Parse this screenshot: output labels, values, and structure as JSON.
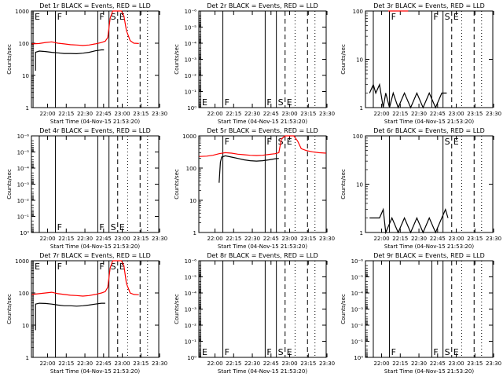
{
  "chart_data": [
    {
      "type": "line",
      "title": "Det 1r BLACK = Events, RED = LLD",
      "xlabel": "Start Time (04-Nov-15 21:53:20)",
      "ylabel": "Counts/sec",
      "xticks": [
        "22:00",
        "22:15",
        "22:30",
        "22:45",
        "23:00",
        "23:15",
        "23:30"
      ],
      "x_range_minutes": [
        -6.3,
        96.0
      ],
      "y_scale": "log",
      "ylim": [
        1,
        1000
      ],
      "yticks": [
        {
          "label": "1",
          "value": 1
        },
        {
          "label": "10",
          "value": 10
        },
        {
          "label": "100",
          "value": 100
        },
        {
          "label": "1000",
          "value": 1000
        }
      ],
      "markers": {
        "solid": [
          {
            "t": -5.0,
            "label": "E"
          },
          {
            "t": 13.0,
            "label": "F"
          },
          {
            "t": 47.0,
            "label": "F"
          },
          {
            "t": 56.0,
            "label": "S"
          }
        ],
        "dashed": [
          {
            "t": 63.0,
            "label": "E"
          },
          {
            "t": 81.0,
            "label": ""
          }
        ],
        "dotted": [
          71.0,
          87.0
        ]
      },
      "series": [
        {
          "name": "Events",
          "color": "#000000",
          "x": [
            -3,
            -3,
            0,
            5,
            10,
            15,
            20,
            25,
            30,
            35,
            40,
            45,
            50,
            52
          ],
          "y": [
            14,
            52,
            57,
            55,
            52,
            50,
            48,
            48,
            47,
            49,
            52,
            58,
            62,
            62
          ]
        },
        {
          "name": "LLD",
          "color": "#ff0000",
          "x": [
            -6,
            0,
            5,
            10,
            15,
            20,
            25,
            30,
            35,
            40,
            45,
            50,
            53,
            55,
            57,
            59,
            66,
            68,
            70,
            73,
            76,
            80
          ],
          "y": [
            95,
            98,
            105,
            110,
            100,
            95,
            90,
            88,
            85,
            88,
            95,
            105,
            115,
            150,
            600,
            1000,
            1000,
            700,
            250,
            120,
            100,
            98
          ]
        }
      ]
    },
    {
      "type": "line",
      "title": "Det 2r BLACK = Events, RED = LLD",
      "xlabel": "Start Time (04-Nov-15 21:53:20)",
      "ylabel": "Counts/sec",
      "xticks": [
        "22:00",
        "22:15",
        "22:30",
        "22:45",
        "23:00",
        "23:15",
        "23:30"
      ],
      "x_range_minutes": [
        -6.3,
        96.0
      ],
      "y_scale": "log",
      "ylim": [
        1,
        1e-06
      ],
      "yticks": [
        {
          "label": "10⁰",
          "value": 1
        },
        {
          "label": "10⁻¹",
          "value": 0.1
        },
        {
          "label": "10⁻²",
          "value": 0.01
        },
        {
          "label": "10⁻³",
          "value": 0.001
        },
        {
          "label": "10⁻⁴",
          "value": 0.0001
        },
        {
          "label": "10⁻⁵",
          "value": 1e-05
        },
        {
          "label": "10⁻⁶",
          "value": 1e-06
        }
      ],
      "markers": {
        "solid": [
          {
            "t": -5.0,
            "label": "E"
          },
          {
            "t": 13.0,
            "label": "F"
          },
          {
            "t": 47.0,
            "label": "F"
          },
          {
            "t": 56.0,
            "label": "S"
          }
        ],
        "dashed": [
          {
            "t": 63.0,
            "label": "E"
          },
          {
            "t": 81.0,
            "label": ""
          }
        ],
        "dotted": [
          71.0,
          87.0
        ]
      },
      "series": []
    },
    {
      "type": "line",
      "title": "Det 3r BLACK = Events, RED = LLD",
      "xlabel": "Start Time (04-Nov-15 21:53:20)",
      "ylabel": "Counts/sec",
      "xticks": [
        "22:00",
        "22:15",
        "22:30",
        "22:45",
        "23:00",
        "23:15",
        "23:30"
      ],
      "x_range_minutes": [
        -6.3,
        96.0
      ],
      "y_scale": "log",
      "ylim": [
        1,
        100
      ],
      "yticks": [
        {
          "label": "1",
          "value": 1
        },
        {
          "label": "10",
          "value": 10
        },
        {
          "label": "100",
          "value": 100
        }
      ],
      "markers": {
        "solid": [
          {
            "t": 0.0,
            "label": ""
          },
          {
            "t": 13.0,
            "label": "F"
          },
          {
            "t": 47.0,
            "label": "F"
          },
          {
            "t": 56.0,
            "label": "S"
          }
        ],
        "dashed": [
          {
            "t": 63.0,
            "label": "E"
          },
          {
            "t": 81.0,
            "label": ""
          }
        ],
        "dotted": [
          71.0,
          87.0
        ]
      },
      "series": [
        {
          "name": "Events",
          "color": "#000000",
          "x": [
            -3,
            0,
            2,
            5,
            8,
            10,
            13,
            16,
            20,
            25,
            30,
            35,
            40,
            45,
            50,
            55,
            59
          ],
          "y": [
            2,
            3,
            2,
            3,
            1,
            2,
            1,
            2,
            1,
            2,
            1,
            2,
            1,
            2,
            1,
            2,
            2
          ]
        },
        {
          "name": "LLD",
          "color": "#ff0000",
          "x": [
            12,
            16,
            20,
            25,
            28
          ],
          "y": [
            100,
            100,
            100,
            100,
            100
          ]
        }
      ]
    },
    {
      "type": "line",
      "title": "Det 4r BLACK = Events, RED = LLD",
      "xlabel": "Start Time (04-Nov-15 21:53:20)",
      "ylabel": "Counts/sec",
      "xticks": [
        "22:00",
        "22:15",
        "22:30",
        "22:45",
        "23:00",
        "23:15",
        "23:30"
      ],
      "x_range_minutes": [
        -6.3,
        96.0
      ],
      "y_scale": "log",
      "ylim": [
        1,
        1e-06
      ],
      "yticks": [
        {
          "label": "10⁰",
          "value": 1
        },
        {
          "label": "10⁻¹",
          "value": 0.1
        },
        {
          "label": "10⁻²",
          "value": 0.01
        },
        {
          "label": "10⁻³",
          "value": 0.001
        },
        {
          "label": "10⁻⁴",
          "value": 0.0001
        },
        {
          "label": "10⁻⁵",
          "value": 1e-05
        },
        {
          "label": "10⁻⁶",
          "value": 1e-06
        }
      ],
      "markers": {
        "solid": [
          {
            "t": 0.0,
            "label": ""
          },
          {
            "t": 13.0,
            "label": "F"
          },
          {
            "t": 47.0,
            "label": "F"
          },
          {
            "t": 56.0,
            "label": "S"
          }
        ],
        "dashed": [
          {
            "t": 63.0,
            "label": "E"
          },
          {
            "t": 81.0,
            "label": ""
          }
        ],
        "dotted": [
          71.0,
          87.0
        ]
      },
      "series": []
    },
    {
      "type": "line",
      "title": "Det 5r BLACK = Events, RED = LLD",
      "xlabel": "Start Time (04-Nov-15 21:53:20)",
      "ylabel": "Counts/sec",
      "xticks": [
        "22:00",
        "22:15",
        "22:30",
        "22:45",
        "23:00",
        "23:15",
        "23:30"
      ],
      "x_range_minutes": [
        -6.3,
        96.0
      ],
      "y_scale": "log",
      "ylim": [
        1,
        1000
      ],
      "yticks": [
        {
          "label": "1",
          "value": 1
        },
        {
          "label": "10",
          "value": 10
        },
        {
          "label": "100",
          "value": 100
        },
        {
          "label": "1000",
          "value": 1000
        }
      ],
      "markers": {
        "solid": [
          {
            "t": 13.0,
            "label": "F"
          },
          {
            "t": 47.0,
            "label": "F"
          },
          {
            "t": 56.0,
            "label": "S"
          }
        ],
        "dashed": [
          {
            "t": 63.0,
            "label": "E"
          },
          {
            "t": 81.0,
            "label": ""
          }
        ],
        "dotted": [
          71.0,
          87.0
        ]
      },
      "series": [
        {
          "name": "Events",
          "color": "#000000",
          "x": [
            10,
            11,
            12,
            15,
            20,
            25,
            30,
            35,
            40,
            45,
            50,
            55,
            58
          ],
          "y": [
            35,
            150,
            220,
            240,
            220,
            200,
            180,
            170,
            165,
            170,
            180,
            195,
            200
          ]
        },
        {
          "name": "LLD",
          "color": "#ff0000",
          "x": [
            -6,
            0,
            5,
            10,
            15,
            20,
            25,
            30,
            35,
            40,
            45,
            50,
            55,
            58,
            60,
            63,
            70,
            73,
            76,
            80,
            85,
            90,
            96
          ],
          "y": [
            230,
            235,
            250,
            280,
            300,
            290,
            270,
            260,
            250,
            245,
            250,
            265,
            280,
            300,
            800,
            1000,
            1000,
            700,
            400,
            350,
            320,
            300,
            290
          ]
        }
      ]
    },
    {
      "type": "line",
      "title": "Det 6r BLACK = Events, RED = LLD",
      "xlabel": "Start Time (04-Nov-15 21:53:20)",
      "ylabel": "Counts/sec",
      "xticks": [
        "22:00",
        "22:15",
        "22:30",
        "22:45",
        "23:00",
        "23:15",
        "23:30"
      ],
      "x_range_minutes": [
        -6.3,
        96.0
      ],
      "y_scale": "log",
      "ylim": [
        1,
        100
      ],
      "yticks": [
        {
          "label": "1",
          "value": 1
        },
        {
          "label": "10",
          "value": 10
        },
        {
          "label": "100",
          "value": 100
        }
      ],
      "markers": {
        "solid": [
          {
            "t": 13.0,
            "label": ""
          },
          {
            "t": 56.0,
            "label": "S"
          }
        ],
        "dashed": [
          {
            "t": 63.0,
            "label": "E"
          },
          {
            "t": 81.0,
            "label": ""
          }
        ],
        "dotted": [
          71.0,
          87.0
        ]
      },
      "series": [
        {
          "name": "Events",
          "color": "#000000",
          "x": [
            -3,
            5,
            8,
            10,
            15,
            20,
            25,
            30,
            35,
            40,
            45,
            50,
            55,
            58,
            60
          ],
          "y": [
            2,
            2,
            3,
            1,
            2,
            1,
            2,
            1,
            2,
            1,
            2,
            1,
            2,
            3,
            2
          ]
        }
      ]
    },
    {
      "type": "line",
      "title": "Det 7r BLACK = Events, RED = LLD",
      "xlabel": "Start Time (04-Nov-15 21:53:20)",
      "ylabel": "Counts/sec",
      "xticks": [
        "22:00",
        "22:15",
        "22:30",
        "22:45",
        "23:00",
        "23:15",
        "23:30"
      ],
      "x_range_minutes": [
        -6.3,
        96.0
      ],
      "y_scale": "log",
      "ylim": [
        1,
        1000
      ],
      "yticks": [
        {
          "label": "1",
          "value": 1
        },
        {
          "label": "10",
          "value": 10
        },
        {
          "label": "100",
          "value": 100
        },
        {
          "label": "1000",
          "value": 1000
        }
      ],
      "markers": {
        "solid": [
          {
            "t": -5.0,
            "label": "E"
          },
          {
            "t": 13.0,
            "label": "F"
          },
          {
            "t": 47.0,
            "label": "F"
          },
          {
            "t": 56.0,
            "label": "S"
          }
        ],
        "dashed": [
          {
            "t": 63.0,
            "label": "E"
          },
          {
            "t": 81.0,
            "label": ""
          }
        ],
        "dotted": [
          71.0,
          87.0
        ]
      },
      "series": [
        {
          "name": "Events",
          "color": "#000000",
          "x": [
            -3,
            -3,
            0,
            5,
            10,
            15,
            20,
            25,
            30,
            35,
            40,
            45,
            50,
            53
          ],
          "y": [
            7,
            45,
            48,
            47,
            45,
            42,
            40,
            40,
            39,
            40,
            42,
            45,
            48,
            48
          ]
        },
        {
          "name": "LLD",
          "color": "#ff0000",
          "x": [
            -6,
            0,
            5,
            10,
            15,
            20,
            25,
            30,
            35,
            40,
            45,
            50,
            53,
            55,
            57,
            59,
            66,
            68,
            70,
            73,
            76,
            80
          ],
          "y": [
            90,
            95,
            100,
            105,
            95,
            90,
            85,
            83,
            80,
            83,
            90,
            100,
            110,
            150,
            600,
            1000,
            1000,
            700,
            200,
            100,
            90,
            88
          ]
        }
      ]
    },
    {
      "type": "line",
      "title": "Det 8r BLACK = Events, RED = LLD",
      "xlabel": "Start Time (04-Nov-15 21:53:20)",
      "ylabel": "Counts/sec",
      "xticks": [
        "22:00",
        "22:15",
        "22:30",
        "22:45",
        "23:00",
        "23:15",
        "23:30"
      ],
      "x_range_minutes": [
        -6.3,
        96.0
      ],
      "y_scale": "log",
      "ylim": [
        1,
        1e-06
      ],
      "yticks": [
        {
          "label": "10⁰",
          "value": 1
        },
        {
          "label": "10⁻¹",
          "value": 0.1
        },
        {
          "label": "10⁻²",
          "value": 0.01
        },
        {
          "label": "10⁻³",
          "value": 0.001
        },
        {
          "label": "10⁻⁴",
          "value": 0.0001
        },
        {
          "label": "10⁻⁵",
          "value": 1e-05
        },
        {
          "label": "10⁻⁶",
          "value": 1e-06
        }
      ],
      "markers": {
        "solid": [
          {
            "t": -5.0,
            "label": "E"
          },
          {
            "t": 13.0,
            "label": "F"
          },
          {
            "t": 47.0,
            "label": "F"
          },
          {
            "t": 56.0,
            "label": "S"
          }
        ],
        "dashed": [
          {
            "t": 63.0,
            "label": "E"
          },
          {
            "t": 81.0,
            "label": ""
          }
        ],
        "dotted": [
          71.0,
          87.0
        ]
      },
      "series": []
    },
    {
      "type": "line",
      "title": "Det 9r BLACK = Events, RED = LLD",
      "xlabel": "Start Time (04-Nov-15 21:53:20)",
      "ylabel": "Counts/sec",
      "xticks": [
        "22:00",
        "22:15",
        "22:30",
        "22:45",
        "23:00",
        "23:15",
        "23:30"
      ],
      "x_range_minutes": [
        -6.3,
        96.0
      ],
      "y_scale": "log",
      "ylim": [
        1,
        1e-06
      ],
      "yticks": [
        {
          "label": "10⁰",
          "value": 1
        },
        {
          "label": "10⁻¹",
          "value": 0.1
        },
        {
          "label": "10⁻²",
          "value": 0.01
        },
        {
          "label": "10⁻³",
          "value": 0.001
        },
        {
          "label": "10⁻⁴",
          "value": 0.0001
        },
        {
          "label": "10⁻⁵",
          "value": 1e-05
        },
        {
          "label": "10⁻⁶",
          "value": 1e-06
        }
      ],
      "markers": {
        "solid": [
          {
            "t": 0.0,
            "label": ""
          },
          {
            "t": 13.0,
            "label": "F"
          },
          {
            "t": 47.0,
            "label": "F"
          },
          {
            "t": 56.0,
            "label": "S"
          }
        ],
        "dashed": [
          {
            "t": 63.0,
            "label": "E"
          },
          {
            "t": 81.0,
            "label": ""
          }
        ],
        "dotted": [
          71.0,
          87.0
        ]
      },
      "series": []
    }
  ]
}
